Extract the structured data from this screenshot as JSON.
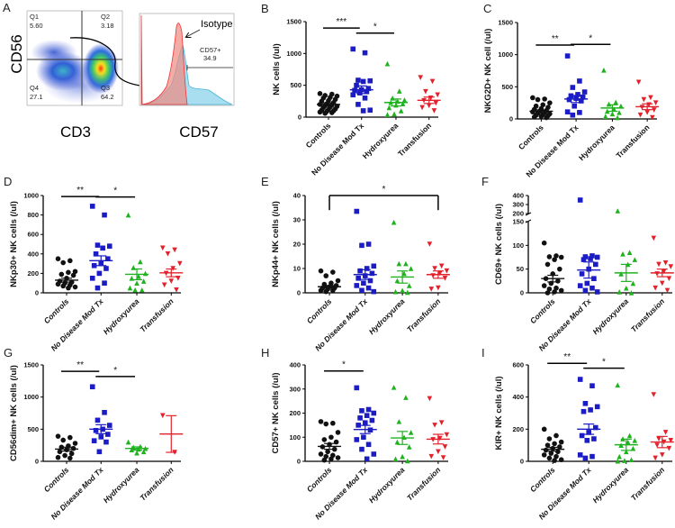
{
  "figure": {
    "panel_letters": [
      "A",
      "B",
      "C",
      "D",
      "E",
      "F",
      "G",
      "H",
      "I"
    ]
  },
  "panel_a": {
    "dotplot": {
      "y_label": "CD56",
      "x_label": "CD3",
      "quadrants": [
        {
          "name": "Q1",
          "value": "5.60"
        },
        {
          "name": "Q2",
          "value": "3.18"
        },
        {
          "name": "Q4",
          "value": "27.1"
        },
        {
          "name": "Q3",
          "value": "64.2"
        }
      ]
    },
    "histogram": {
      "x_label": "CD57",
      "isotype_label": "Isotype",
      "gate_label": "CD57+",
      "gate_value": "34.9"
    }
  },
  "colors": {
    "Controls": "#111111",
    "No Disease Mod Tx": "#1c1cc4",
    "Hydroxyurea": "#1fb21f",
    "Transfusion": "#e3212b"
  },
  "chart_data": [
    {
      "panel": "B",
      "type": "scatter",
      "ylabel": "NK cells (/ul)",
      "ylim": [
        0,
        1500
      ],
      "yticks": [
        0,
        500,
        1000,
        1500
      ],
      "categories": [
        "Controls",
        "No Disease Mod Tx",
        "Hydroxyurea",
        "Transfusion"
      ],
      "series": [
        {
          "name": "Controls",
          "marker": "circle",
          "values": [
            370,
            360,
            340,
            330,
            310,
            300,
            280,
            260,
            250,
            230,
            210,
            200,
            190,
            180,
            170,
            160,
            150,
            130,
            120,
            110,
            100,
            90,
            80,
            70,
            60
          ],
          "mean": 200,
          "sem": 25
        },
        {
          "name": "No Disease Mod Tx",
          "marker": "square",
          "values": [
            1070,
            1010,
            580,
            570,
            560,
            500,
            450,
            430,
            420,
            400,
            380,
            350,
            300,
            200,
            110,
            100
          ],
          "mean": 430,
          "sem": 60
        },
        {
          "name": "Hydroxyurea",
          "marker": "triangle-up",
          "values": [
            840,
            410,
            300,
            270,
            250,
            230,
            210,
            190,
            150,
            100,
            50,
            40
          ],
          "mean": 230,
          "sem": 55
        },
        {
          "name": "Transfusion",
          "marker": "triangle-down",
          "values": [
            620,
            560,
            400,
            350,
            300,
            260,
            220,
            180,
            150,
            100
          ],
          "mean": 265,
          "sem": 50
        }
      ],
      "significance": [
        {
          "from": 0,
          "to": 1,
          "y": 1400,
          "label": "***"
        },
        {
          "from": 1,
          "to": 2,
          "y": 1320,
          "label": "*"
        }
      ]
    },
    {
      "panel": "C",
      "type": "scatter",
      "ylabel": "NKG2D+ NK cell (/ul)",
      "ylim": [
        0,
        1500
      ],
      "yticks": [
        0,
        500,
        1000,
        1500
      ],
      "categories": [
        "Controls",
        "No Disease Mod Tx",
        "Hydroxyurea",
        "Transfusion"
      ],
      "series": [
        {
          "name": "Controls",
          "marker": "circle",
          "values": [
            330,
            310,
            300,
            250,
            220,
            200,
            180,
            160,
            150,
            130,
            120,
            110,
            100,
            90,
            80,
            70,
            60,
            50,
            40,
            30,
            20
          ],
          "mean": 120,
          "sem": 20
        },
        {
          "name": "No Disease Mod Tx",
          "marker": "square",
          "values": [
            980,
            590,
            490,
            420,
            380,
            360,
            340,
            320,
            300,
            280,
            200,
            110,
            100,
            60
          ],
          "mean": 310,
          "sem": 55
        },
        {
          "name": "Hydroxyurea",
          "marker": "triangle-up",
          "values": [
            760,
            260,
            230,
            200,
            150,
            120,
            100,
            80,
            40,
            20
          ],
          "mean": 170,
          "sem": 50
        },
        {
          "name": "Transfusion",
          "marker": "triangle-down",
          "values": [
            570,
            330,
            300,
            250,
            220,
            180,
            140,
            100,
            60,
            20
          ],
          "mean": 190,
          "sem": 45
        }
      ],
      "significance": [
        {
          "from": 0,
          "to": 1,
          "y": 1150,
          "label": "**"
        },
        {
          "from": 1,
          "to": 2,
          "y": 1160,
          "label": "*"
        }
      ]
    },
    {
      "panel": "D",
      "type": "scatter",
      "ylabel": "NKp30+ NK cells (/ul)",
      "ylim": [
        0,
        1000
      ],
      "yticks": [
        0,
        200,
        400,
        600,
        800,
        1000
      ],
      "categories": [
        "Controls",
        "No Disease Mod Tx",
        "Hydroxyurea",
        "Transfusion"
      ],
      "series": [
        {
          "name": "Controls",
          "marker": "circle",
          "values": [
            350,
            330,
            310,
            220,
            210,
            190,
            180,
            150,
            120,
            110,
            100,
            90,
            80,
            70,
            60,
            50
          ],
          "mean": 130,
          "sem": 20
        },
        {
          "name": "No Disease Mod Tx",
          "marker": "square",
          "values": [
            890,
            800,
            490,
            480,
            460,
            400,
            350,
            300,
            280,
            250,
            200,
            150,
            100,
            50
          ],
          "mean": 330,
          "sem": 50
        },
        {
          "name": "Hydroxyurea",
          "marker": "triangle-up",
          "values": [
            800,
            320,
            260,
            200,
            170,
            150,
            120,
            100,
            50,
            30,
            30
          ],
          "mean": 190,
          "sem": 55
        },
        {
          "name": "Transfusion",
          "marker": "triangle-down",
          "values": [
            460,
            440,
            400,
            300,
            250,
            200,
            150,
            120,
            80,
            30
          ],
          "mean": 205,
          "sem": 40
        }
      ],
      "significance": [
        {
          "from": 0,
          "to": 1,
          "y": 990,
          "label": "**"
        },
        {
          "from": 1,
          "to": 2,
          "y": 985,
          "label": "*"
        }
      ]
    },
    {
      "panel": "E",
      "type": "scatter",
      "ylabel": "NKp44+ NK cells (/ul)",
      "ylim": [
        0,
        40
      ],
      "yticks": [
        0,
        10,
        20,
        30,
        40
      ],
      "categories": [
        "Controls",
        "No Disease Mod Tx",
        "Hydroxyurea",
        "Transfusion"
      ],
      "series": [
        {
          "name": "Controls",
          "marker": "circle",
          "values": [
            9,
            8.5,
            7,
            5,
            4,
            3.5,
            3,
            2.5,
            2,
            2,
            1.5,
            1,
            1,
            0.5
          ],
          "mean": 2.5,
          "sem": 0.5
        },
        {
          "name": "No Disease Mod Tx",
          "marker": "square",
          "values": [
            33.5,
            20,
            19.5,
            11,
            10,
            9,
            8,
            7,
            6,
            5,
            4,
            3,
            2,
            1,
            0.5
          ],
          "mean": 7.5,
          "sem": 2
        },
        {
          "name": "Hydroxyurea",
          "marker": "triangle-up",
          "values": [
            29,
            12,
            12,
            10,
            8,
            5,
            3,
            1,
            0.5,
            0.2
          ],
          "mean": 6.5,
          "sem": 2.5
        },
        {
          "name": "Transfusion",
          "marker": "triangle-down",
          "values": [
            20,
            11,
            10,
            9,
            8,
            7,
            6,
            2,
            1.5
          ],
          "mean": 7.5,
          "sem": 1.5
        }
      ],
      "significance": [
        {
          "from": 0,
          "to": 3,
          "y": 40,
          "label": "*",
          "bracket_drop": 34
        }
      ]
    },
    {
      "panel": "F",
      "type": "scatter",
      "ylabel": "CD69+ NK cells (/ul)",
      "ylim": [
        0,
        400
      ],
      "axis_break": [
        150,
        200
      ],
      "yticks": [
        0,
        50,
        100,
        150,
        200,
        300,
        400
      ],
      "categories": [
        "Controls",
        "No Disease Mod Tx",
        "Hydroxyurea",
        "Transfusion"
      ],
      "series": [
        {
          "name": "Controls",
          "marker": "circle",
          "values": [
            105,
            78,
            76,
            75,
            70,
            60,
            50,
            40,
            30,
            25,
            20,
            15,
            10,
            8,
            5,
            2,
            0
          ],
          "mean": 30,
          "sem": 7
        },
        {
          "name": "No Disease Mod Tx",
          "marker": "square",
          "values": [
            350,
            78,
            76,
            75,
            72,
            70,
            60,
            50,
            40,
            30,
            20,
            15,
            10,
            5,
            2
          ],
          "mean": 48,
          "sem": 17
        },
        {
          "name": "Hydroxyurea",
          "marker": "triangle-up",
          "values": [
            230,
            85,
            82,
            70,
            60,
            40,
            20,
            10,
            2,
            0
          ],
          "mean": 42,
          "sem": 18
        },
        {
          "name": "Transfusion",
          "marker": "triangle-down",
          "values": [
            115,
            63,
            60,
            55,
            45,
            40,
            30,
            20,
            10,
            5
          ],
          "mean": 42,
          "sem": 8
        }
      ],
      "significance": []
    },
    {
      "panel": "G",
      "type": "scatter",
      "ylabel": "CD56dim+ NK cells (/ul)",
      "ylim": [
        0,
        1500
      ],
      "yticks": [
        0,
        500,
        1000,
        1500
      ],
      "categories": [
        "Controls",
        "No Disease Mod Tx",
        "Hydroxyurea",
        "Transfusion"
      ],
      "series": [
        {
          "name": "Controls",
          "marker": "circle",
          "values": [
            390,
            370,
            330,
            280,
            240,
            220,
            200,
            180,
            150,
            120,
            90,
            60,
            50
          ],
          "mean": 190,
          "sem": 30
        },
        {
          "name": "No Disease Mod Tx",
          "marker": "square",
          "values": [
            1160,
            760,
            640,
            560,
            500,
            480,
            420,
            380,
            320,
            300,
            150
          ],
          "mean": 500,
          "sem": 70
        },
        {
          "name": "Hydroxyurea",
          "marker": "triangle-up",
          "values": [
            300,
            230,
            220,
            200,
            190,
            180,
            150,
            130
          ],
          "mean": 200,
          "sem": 25
        },
        {
          "name": "Transfusion",
          "marker": "triangle-down",
          "values": [
            710,
            140
          ],
          "mean": 425,
          "sem": 285
        }
      ],
      "significance": [
        {
          "from": 0,
          "to": 1,
          "y": 1400,
          "label": "**"
        },
        {
          "from": 1,
          "to": 2,
          "y": 1320,
          "label": "*"
        }
      ]
    },
    {
      "panel": "H",
      "type": "scatter",
      "ylabel": "CD57+ NK cells (/ul)",
      "ylim": [
        0,
        400
      ],
      "yticks": [
        0,
        100,
        200,
        300,
        400
      ],
      "categories": [
        "Controls",
        "No Disease Mod Tx",
        "Hydroxyurea",
        "Transfusion"
      ],
      "series": [
        {
          "name": "Controls",
          "marker": "circle",
          "values": [
            165,
            158,
            155,
            120,
            100,
            90,
            80,
            70,
            60,
            50,
            40,
            30,
            25,
            20,
            15,
            10,
            5
          ],
          "mean": 62,
          "sem": 12
        },
        {
          "name": "No Disease Mod Tx",
          "marker": "square",
          "values": [
            305,
            215,
            210,
            200,
            190,
            180,
            170,
            160,
            150,
            130,
            100,
            90,
            70,
            50,
            30,
            10
          ],
          "mean": 132,
          "sem": 17
        },
        {
          "name": "Hydroxyurea",
          "marker": "triangle-up",
          "values": [
            307,
            265,
            165,
            120,
            100,
            80,
            60,
            20,
            10,
            2
          ],
          "mean": 97,
          "sem": 27
        },
        {
          "name": "Transfusion",
          "marker": "triangle-down",
          "values": [
            260,
            160,
            150,
            110,
            95,
            90,
            60,
            40,
            20,
            15
          ],
          "mean": 92,
          "sem": 20
        }
      ],
      "significance": [
        {
          "from": 0,
          "to": 1,
          "y": 375,
          "label": "*"
        }
      ]
    },
    {
      "panel": "I",
      "type": "scatter",
      "ylabel": "KIR+ NK cells (/ul)",
      "ylim": [
        0,
        600
      ],
      "yticks": [
        0,
        200,
        400,
        600
      ],
      "categories": [
        "Controls",
        "No Disease Mod Tx",
        "Hydroxyurea",
        "Transfusion"
      ],
      "series": [
        {
          "name": "Controls",
          "marker": "circle",
          "values": [
            200,
            160,
            140,
            120,
            110,
            100,
            90,
            80,
            70,
            60,
            50,
            40,
            30,
            20,
            10,
            5
          ],
          "mean": 75,
          "sem": 12
        },
        {
          "name": "No Disease Mod Tx",
          "marker": "square",
          "values": [
            510,
            470,
            360,
            340,
            320,
            310,
            210,
            180,
            160,
            140,
            130,
            40,
            30,
            20
          ],
          "mean": 200,
          "sem": 32
        },
        {
          "name": "Hydroxyurea",
          "marker": "triangle-up",
          "values": [
            475,
            160,
            140,
            130,
            120,
            100,
            80,
            60,
            30,
            10,
            5,
            2
          ],
          "mean": 103,
          "sem": 35
        },
        {
          "name": "Transfusion",
          "marker": "triangle-down",
          "values": [
            415,
            180,
            140,
            130,
            120,
            100,
            80,
            40,
            20
          ],
          "mean": 120,
          "sem": 35
        }
      ],
      "significance": [
        {
          "from": 0,
          "to": 1,
          "y": 610,
          "label": "**"
        },
        {
          "from": 1,
          "to": 2,
          "y": 580,
          "label": "*"
        }
      ]
    }
  ]
}
